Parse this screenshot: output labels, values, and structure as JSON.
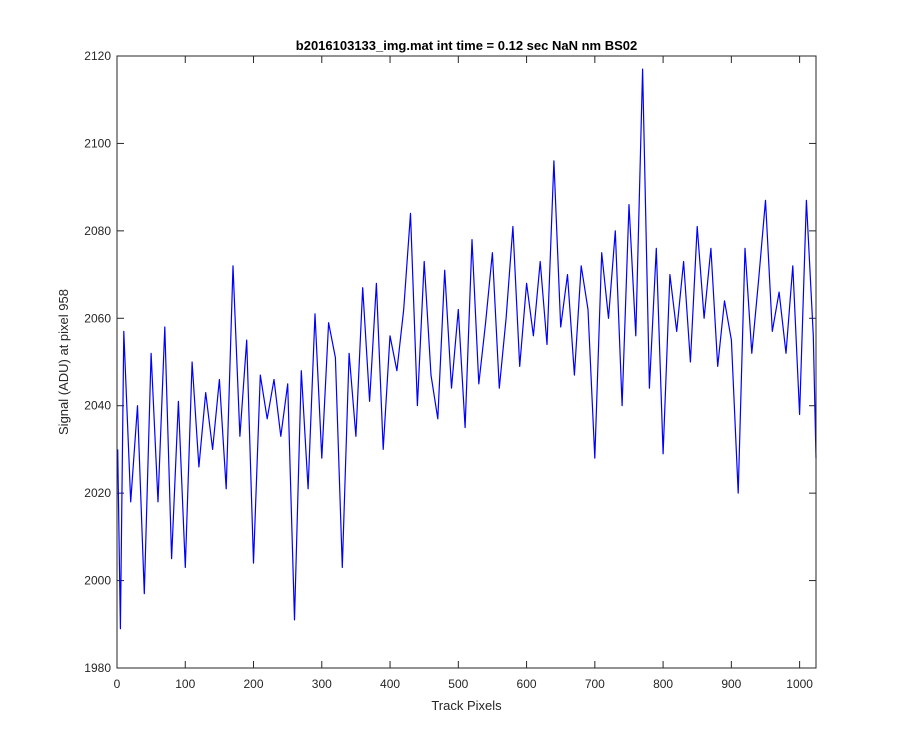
{
  "chart_data": {
    "type": "line",
    "title": "b2016103133_img.mat int time = 0.12 sec  NaN nm BS02",
    "xlabel": "Track Pixels",
    "ylabel": "Signal (ADU) at pixel 958",
    "xlim": [
      0,
      1024
    ],
    "ylim": [
      1980,
      2120
    ],
    "xticks": [
      0,
      100,
      200,
      300,
      400,
      500,
      600,
      700,
      800,
      900,
      1000
    ],
    "yticks": [
      1980,
      2000,
      2020,
      2040,
      2060,
      2080,
      2100,
      2120
    ],
    "grid": false,
    "legend": "none",
    "series": [
      {
        "color": "#0000ff",
        "x": [
          1,
          5,
          10,
          20,
          30,
          40,
          50,
          60,
          70,
          80,
          90,
          100,
          110,
          120,
          130,
          140,
          150,
          160,
          170,
          180,
          190,
          200,
          210,
          220,
          230,
          240,
          250,
          260,
          270,
          280,
          290,
          300,
          310,
          320,
          330,
          340,
          350,
          360,
          370,
          380,
          390,
          400,
          410,
          420,
          430,
          440,
          450,
          460,
          470,
          480,
          490,
          500,
          510,
          520,
          530,
          540,
          550,
          560,
          570,
          580,
          590,
          600,
          610,
          620,
          630,
          640,
          650,
          660,
          670,
          680,
          690,
          700,
          710,
          720,
          730,
          740,
          750,
          760,
          770,
          780,
          790,
          800,
          810,
          820,
          830,
          840,
          850,
          860,
          870,
          880,
          890,
          900,
          910,
          920,
          930,
          940,
          950,
          960,
          970,
          980,
          990,
          1000,
          1010,
          1020,
          1024
        ],
        "y": [
          2030,
          1989,
          2057,
          2018,
          2040,
          1997,
          2052,
          2018,
          2058,
          2005,
          2041,
          2003,
          2050,
          2026,
          2043,
          2030,
          2046,
          2021,
          2072,
          2033,
          2055,
          2004,
          2047,
          2037,
          2046,
          2033,
          2045,
          1991,
          2048,
          2021,
          2061,
          2028,
          2059,
          2051,
          2003,
          2052,
          2033,
          2067,
          2041,
          2068,
          2030,
          2056,
          2048,
          2062,
          2084,
          2040,
          2073,
          2047,
          2037,
          2071,
          2044,
          2062,
          2035,
          2078,
          2045,
          2059,
          2075,
          2044,
          2060,
          2081,
          2049,
          2068,
          2056,
          2073,
          2054,
          2096,
          2058,
          2070,
          2047,
          2072,
          2062,
          2028,
          2075,
          2060,
          2080,
          2040,
          2086,
          2056,
          2117,
          2044,
          2076,
          2029,
          2070,
          2057,
          2073,
          2050,
          2081,
          2060,
          2076,
          2049,
          2064,
          2055,
          2020,
          2076,
          2052,
          2069,
          2087,
          2057,
          2066,
          2052,
          2072,
          2038,
          2087,
          2056,
          2028
        ]
      }
    ]
  }
}
